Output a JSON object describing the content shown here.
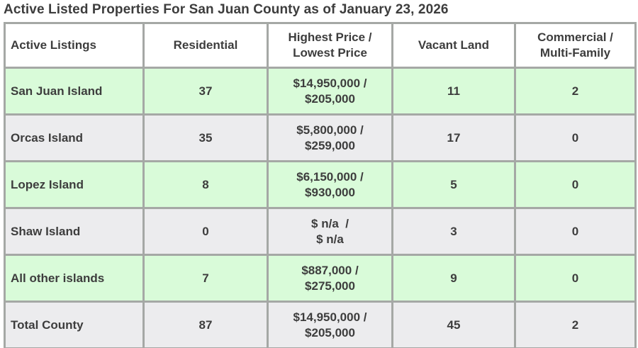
{
  "page": {
    "title": "Active Listed Properties For San Juan County as of January 23, 2026"
  },
  "colors": {
    "row_green": "#d9fbd9",
    "row_gray": "#ececee",
    "border": "#a5a8a5",
    "header_bg": "#ffffff",
    "text": "#3d3d3d"
  },
  "table": {
    "headers": {
      "col1": "Active Listings",
      "col2": "Residential",
      "col3": "Highest Price /\nLowest Price",
      "col4": "Vacant Land",
      "col5": "Commercial /\nMulti-Family"
    },
    "rows": [
      {
        "label": "San Juan Island",
        "residential": "37",
        "price": "$14,950,000 /\n$205,000",
        "vacant_land": "11",
        "commercial": "2"
      },
      {
        "label": "Orcas Island",
        "residential": "35",
        "price": "$5,800,000 /\n$259,000",
        "vacant_land": "17",
        "commercial": "0"
      },
      {
        "label": "Lopez Island",
        "residential": "8",
        "price": "$6,150,000 /\n$930,000",
        "vacant_land": "5",
        "commercial": "0"
      },
      {
        "label": "Shaw Island",
        "residential": "0",
        "price": "$ n/a  /\n$ n/a",
        "vacant_land": "3",
        "commercial": "0"
      },
      {
        "label": "All other islands",
        "residential": "7",
        "price": "$887,000 /\n$275,000",
        "vacant_land": "9",
        "commercial": "0"
      },
      {
        "label": "Total County",
        "residential": "87",
        "price": "$14,950,000 /\n$205,000",
        "vacant_land": "45",
        "commercial": "2"
      }
    ]
  },
  "chart_data": {
    "type": "table",
    "title": "Active Listed Properties For San Juan County as of January 23, 2026",
    "columns": [
      "Active Listings",
      "Residential",
      "Highest Price / Lowest Price",
      "Vacant Land",
      "Commercial / Multi-Family"
    ],
    "rows": [
      [
        "San Juan Island",
        37,
        "$14,950,000 / $205,000",
        11,
        2
      ],
      [
        "Orcas Island",
        35,
        "$5,800,000 / $259,000",
        17,
        0
      ],
      [
        "Lopez Island",
        8,
        "$6,150,000 / $930,000",
        5,
        0
      ],
      [
        "Shaw Island",
        0,
        "$ n/a / $ n/a",
        3,
        0
      ],
      [
        "All other islands",
        7,
        "$887,000 / $275,000",
        9,
        0
      ],
      [
        "Total County",
        87,
        "$14,950,000 / $205,000",
        45,
        2
      ]
    ],
    "row_striping": [
      "green",
      "gray",
      "green",
      "gray",
      "green",
      "gray"
    ]
  }
}
